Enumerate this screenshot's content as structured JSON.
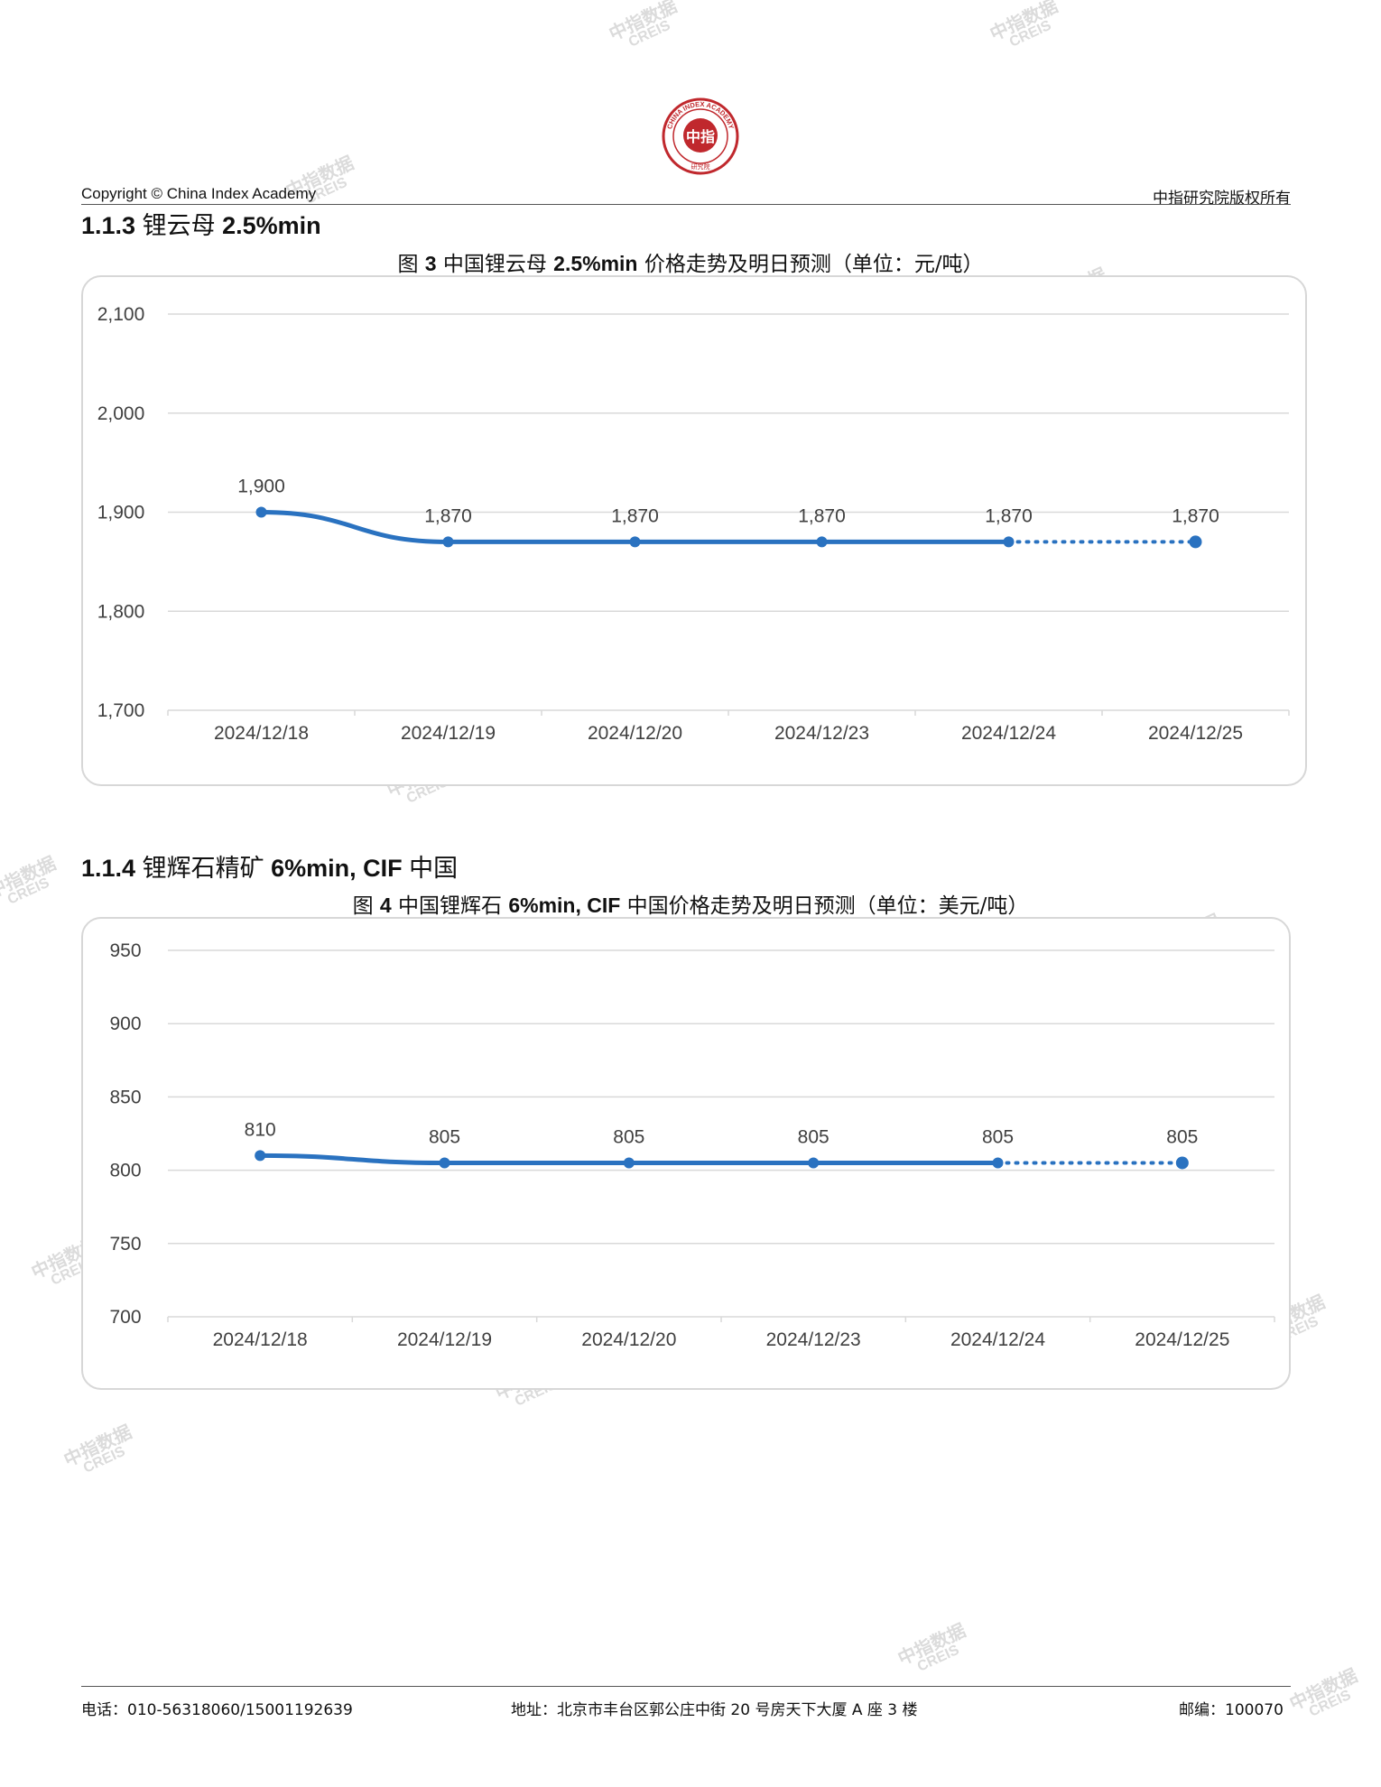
{
  "header": {
    "copyright": "Copyright © China Index Academy",
    "rights": "中指研究院版权所有",
    "logo": {
      "center_text": "中指",
      "ring_text": "CHINA INDEX ACADEMY",
      "bottom_text": "研究院",
      "color": "#c0282d"
    }
  },
  "section3": {
    "number": "1.1.3",
    "name": "锂云母",
    "spec": "2.5%min"
  },
  "figure3": {
    "prefix": "图",
    "num": "3",
    "name1": "中国锂云母",
    "spec": "2.5%min",
    "name2": "价格走势及明日预测（单位：元/吨）"
  },
  "section4": {
    "number": "1.1.4",
    "name": "锂辉石精矿",
    "spec": "6%min, CIF",
    "region": "中国"
  },
  "figure4": {
    "prefix": "图",
    "num": "4",
    "name1": "中国锂辉石",
    "spec": "6%min, CIF",
    "name2": "中国价格走势及明日预测（单位：美元/吨）"
  },
  "chart_data": [
    {
      "type": "line",
      "categories": [
        "2024/12/18",
        "2024/12/19",
        "2024/12/20",
        "2024/12/23",
        "2024/12/24",
        "2024/12/25"
      ],
      "values": [
        1900,
        1870,
        1870,
        1870,
        1870,
        1870
      ],
      "labels": [
        "1,900",
        "1,870",
        "1,870",
        "1,870",
        "1,870",
        "1,870"
      ],
      "yticks": [
        "1,700",
        "1,800",
        "1,900",
        "2,000",
        "2,100"
      ],
      "ylim": [
        1700,
        2100
      ],
      "forecast_from_index": 4,
      "grid": true,
      "color": "#2a72c0"
    },
    {
      "type": "line",
      "categories": [
        "2024/12/18",
        "2024/12/19",
        "2024/12/20",
        "2024/12/23",
        "2024/12/24",
        "2024/12/25"
      ],
      "values": [
        810,
        805,
        805,
        805,
        805,
        805
      ],
      "labels": [
        "810",
        "805",
        "805",
        "805",
        "805",
        "805"
      ],
      "yticks": [
        "700",
        "750",
        "800",
        "850",
        "900",
        "950"
      ],
      "ylim": [
        700,
        950
      ],
      "forecast_from_index": 4,
      "grid": true,
      "color": "#2a72c0"
    }
  ],
  "watermark": {
    "cn": "中指数据",
    "en": "CREIS"
  },
  "footer": {
    "phone": "电话：010-56318060/15001192639",
    "address": "地址：北京市丰台区郭公庄中街 20 号房天下大厦 A 座 3 楼",
    "postcode": "邮编：100070"
  }
}
